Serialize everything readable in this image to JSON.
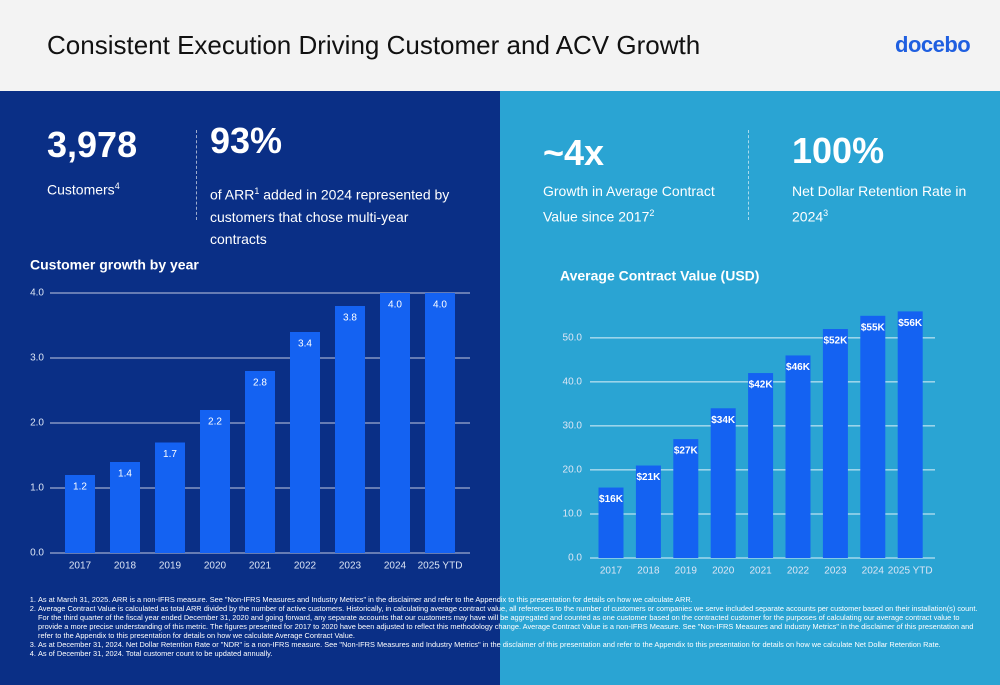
{
  "header": {
    "title": "Consistent Execution Driving Customer and ACV Growth",
    "logo": "docebo"
  },
  "kpis": [
    {
      "value": "3,978",
      "text": "Customers",
      "note": "4"
    },
    {
      "value": "93%",
      "text_before": "of ARR",
      "note": "1",
      "text_after": " added in 2024 represented by customers that chose multi-year contracts"
    },
    {
      "value": "~4x",
      "text": "Growth in Average Contract Value since 2017",
      "note": "2"
    },
    {
      "value": "100%",
      "text": "Net Dollar Retention Rate in 2024",
      "note": "3"
    }
  ],
  "chart_data": [
    {
      "type": "bar",
      "title": "Customer growth by year",
      "categories": [
        "2017",
        "2018",
        "2019",
        "2020",
        "2021",
        "2022",
        "2023",
        "2024",
        "2025 YTD"
      ],
      "values": [
        1.2,
        1.4,
        1.7,
        2.2,
        2.8,
        3.4,
        3.8,
        4.0,
        4.0
      ],
      "value_labels": [
        "1.2",
        "1.4",
        "1.7",
        "2.2",
        "2.8",
        "3.4",
        "3.8",
        "4.0",
        "4.0"
      ],
      "color": "#1462f2",
      "ylim": [
        0,
        4
      ],
      "yticks": [
        {
          "value": 0,
          "label": "0.0"
        },
        {
          "value": 1,
          "label": "1.0"
        },
        {
          "value": 2,
          "label": "2.0"
        },
        {
          "value": 3,
          "label": "3.0"
        },
        {
          "value": 4,
          "label": "4.0"
        }
      ],
      "grid": true
    },
    {
      "type": "bar",
      "title": "Average Contract Value (USD)",
      "categories": [
        "2017",
        "2018",
        "2019",
        "2020",
        "2021",
        "2022",
        "2023",
        "2024",
        "2025 YTD"
      ],
      "values": [
        16,
        21,
        27,
        34,
        42,
        46,
        52,
        55,
        56
      ],
      "value_labels": [
        "$16K",
        "$21K",
        "$27K",
        "$34K",
        "$42K",
        "$46K",
        "$52K",
        "$55K",
        "$56K"
      ],
      "color": "#1462f2",
      "ylim": [
        0,
        57
      ],
      "yticks": [
        {
          "value": 0,
          "label": "0.0"
        },
        {
          "value": 10,
          "label": "10.0"
        },
        {
          "value": 20,
          "label": "20.0"
        },
        {
          "value": 30,
          "label": "30.0"
        },
        {
          "value": 40,
          "label": "40.0"
        },
        {
          "value": 50,
          "label": "50.0"
        }
      ],
      "grid": true
    }
  ],
  "footnotes": [
    "As at March 31, 2025.  ARR is a non-IFRS measure. See \"Non-IFRS Measures and Industry Metrics\" in the disclaimer and refer to the Appendix to this presentation for details on how we calculate ARR.",
    "Average Contract Value is calculated as total ARR divided by the number of active customers. Historically, in calculating average contract value, all references to the number of customers or companies we serve included separate accounts per customer based on their installation(s) count. For the third quarter of the fiscal year ended December 31, 2020 and going forward, any separate accounts that our customers may have will be aggregated and counted as one customer based on the contracted customer for the purposes of calculating our average contract value to provide a more precise understanding of this metric. The figures presented for 2017 to 2020 have been adjusted to reflect this methodology change.  Average Contract Value is a non-IFRS Measure. See \"Non-IFRS Measures and Industry Metrics\" in the disclaimer of this presentation and refer to the Appendix to this presentation for details on how we calculate Average Contract Value.",
    "As at December 31, 2024. Net Dollar Retention Rate or \"NDR\" is a non-IFRS measure.  See \"Non-IFRS Measures and Industry Metrics\" in the disclaimer of this presentation and refer to the Appendix to this presentation for details on how we calculate Net Dollar Retention Rate.",
    "As of December 31, 2024.  Total customer count to be updated annually."
  ]
}
